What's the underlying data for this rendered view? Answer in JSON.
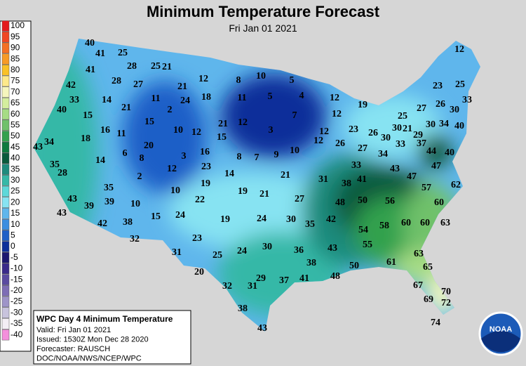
{
  "title": "Minimum Temperature Forecast",
  "subtitle": "Fri Jan 01 2021",
  "legend": [
    {
      "label": "100",
      "color": "#e41a1c"
    },
    {
      "label": "95",
      "color": "#f04624"
    },
    {
      "label": "90",
      "color": "#f47025"
    },
    {
      "label": "85",
      "color": "#f79a26"
    },
    {
      "label": "80",
      "color": "#f9c127"
    },
    {
      "label": "75",
      "color": "#fde98a"
    },
    {
      "label": "70",
      "color": "#f5f6bd"
    },
    {
      "label": "65",
      "color": "#d4ee9e"
    },
    {
      "label": "60",
      "color": "#a6dc84"
    },
    {
      "label": "55",
      "color": "#6fc16b"
    },
    {
      "label": "50",
      "color": "#33a14e"
    },
    {
      "label": "45",
      "color": "#0e7a3f"
    },
    {
      "label": "40",
      "color": "#0a5a3c"
    },
    {
      "label": "35",
      "color": "#1e8b7d"
    },
    {
      "label": "30",
      "color": "#36b8a7"
    },
    {
      "label": "25",
      "color": "#5ed8d9"
    },
    {
      "label": "20",
      "color": "#87e3f2"
    },
    {
      "label": "15",
      "color": "#5fb6ec"
    },
    {
      "label": "10",
      "color": "#3b8ee0"
    },
    {
      "label": "5",
      "color": "#1f5fc7"
    },
    {
      "label": "0",
      "color": "#0e2f9a"
    },
    {
      "label": "-5",
      "color": "#1c1770"
    },
    {
      "label": "-10",
      "color": "#3a2a8a"
    },
    {
      "label": "-15",
      "color": "#5a4aa0"
    },
    {
      "label": "-20",
      "color": "#7d6db5"
    },
    {
      "label": "-25",
      "color": "#9e94c8"
    },
    {
      "label": "-30",
      "color": "#c8c3dd"
    },
    {
      "label": "-35",
      "color": "#f3eef5"
    },
    {
      "label": "-40",
      "color": "#f48fdc"
    }
  ],
  "stations": [
    40,
    41,
    25,
    41,
    28,
    25,
    21,
    12,
    8,
    10,
    5,
    42,
    28,
    27,
    21,
    24,
    18,
    11,
    5,
    4,
    12,
    19,
    12,
    23,
    25,
    33,
    14,
    11,
    40,
    21,
    2,
    12,
    21,
    7,
    12,
    27,
    26,
    30,
    33,
    15,
    15,
    25,
    16,
    11,
    10,
    12,
    15,
    3,
    12,
    23,
    26,
    30,
    30,
    21,
    29,
    30,
    34,
    40,
    18,
    20,
    12,
    26,
    27,
    33,
    43,
    34,
    6,
    16,
    8,
    7,
    9,
    10,
    34,
    37,
    44,
    40,
    14,
    3,
    8,
    35,
    12,
    23,
    33,
    43,
    47,
    28,
    2,
    14,
    21,
    47,
    62,
    10,
    19,
    19,
    21,
    31,
    38,
    41,
    57,
    35,
    22,
    27,
    43,
    39,
    39,
    10,
    48,
    50,
    56,
    60,
    43,
    15,
    24,
    19,
    24,
    30,
    35,
    42,
    42,
    38,
    54,
    58,
    60,
    60,
    63,
    32,
    23,
    55,
    30,
    36,
    43,
    31,
    25,
    24,
    63,
    38,
    50,
    61,
    20,
    65,
    29,
    37,
    41,
    48,
    32,
    31,
    67,
    70,
    69,
    72,
    38,
    43,
    74
  ],
  "info": {
    "heading": "WPC Day 4 Minimum Temperature",
    "lines": [
      "Valid: Fri Jan 01 2021",
      "Issued: 1530Z Mon Dec 28 2020",
      "Forecaster: RAUSCH",
      "DOC/NOAA/NWS/NCEP/WPC"
    ]
  },
  "logo": "NOAA"
}
